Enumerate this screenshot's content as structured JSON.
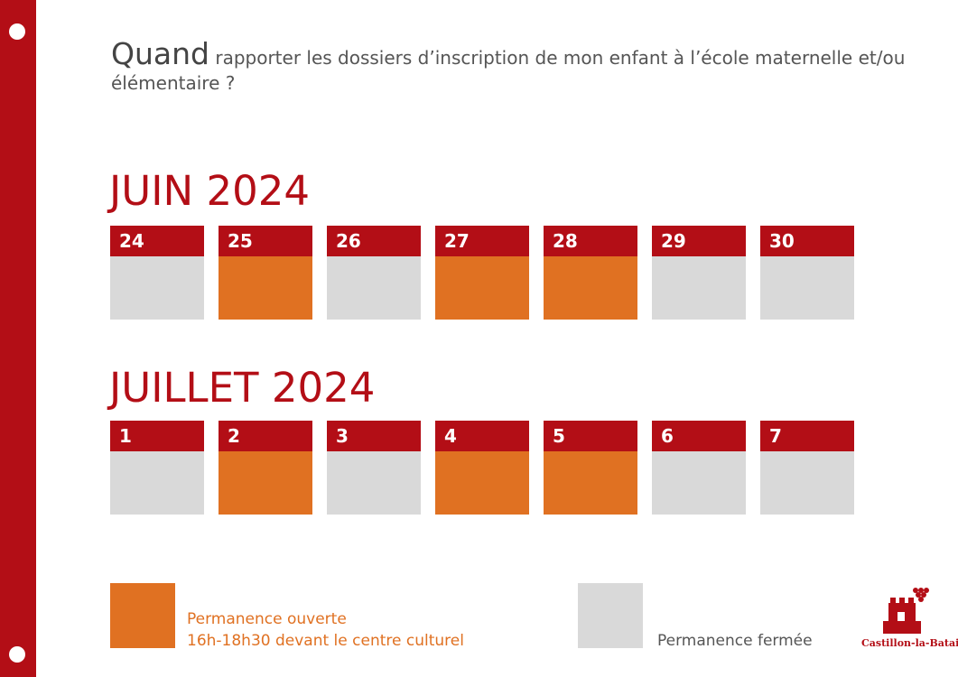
{
  "title": {
    "lead": "Quand",
    "rest": " rapporter les dossiers d’inscription de mon enfant à l’école maternelle et/ou élémentaire ?"
  },
  "months": [
    {
      "name": "JUIN 2024",
      "days": [
        {
          "day": "24",
          "status": "fermee"
        },
        {
          "day": "25",
          "status": "ouverte"
        },
        {
          "day": "26",
          "status": "fermee"
        },
        {
          "day": "27",
          "status": "ouverte"
        },
        {
          "day": "28",
          "status": "ouverte"
        },
        {
          "day": "29",
          "status": "fermee"
        },
        {
          "day": "30",
          "status": "fermee"
        }
      ]
    },
    {
      "name": "JUILLET 2024",
      "days": [
        {
          "day": "1",
          "status": "fermee"
        },
        {
          "day": "2",
          "status": "ouverte"
        },
        {
          "day": "3",
          "status": "fermee"
        },
        {
          "day": "4",
          "status": "ouverte"
        },
        {
          "day": "5",
          "status": "ouverte"
        },
        {
          "day": "6",
          "status": "fermee"
        },
        {
          "day": "7",
          "status": "fermee"
        }
      ]
    }
  ],
  "legend": {
    "open_line1": "Permanence ouverte",
    "open_line2": "16h-18h30 devant le centre culturel",
    "closed": "Permanence fermée"
  },
  "logo": {
    "name": "Castillon-la-Bataille",
    "icon": "castle-grapes-icon"
  },
  "colors": {
    "red": "#b30e16",
    "orange": "#e07122",
    "grey": "#d9d9d9"
  }
}
